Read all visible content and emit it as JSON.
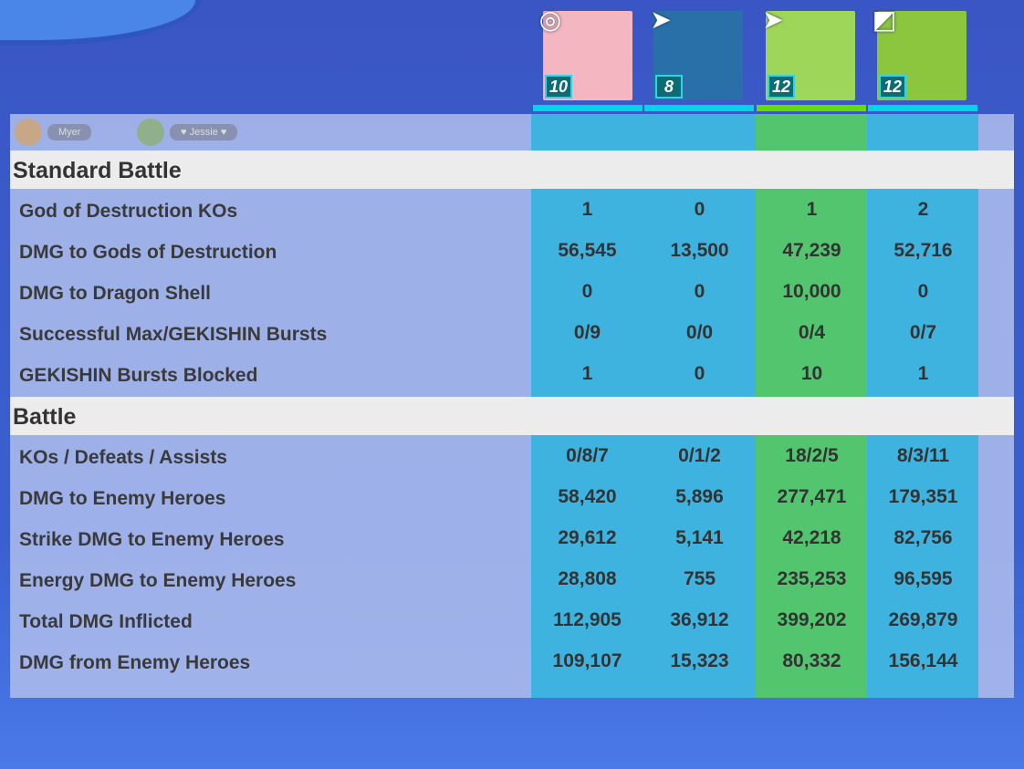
{
  "players": [
    {
      "level": "10",
      "role_icon": "ring-icon",
      "bar_color": "#00d4e6",
      "color": "#f4b6c0"
    },
    {
      "level": "8",
      "role_icon": "arrow-icon",
      "bar_color": "#00d4e6",
      "color": "#2a70a8"
    },
    {
      "level": "12",
      "role_icon": "arrow-icon",
      "bar_color": "#66dd00",
      "color": "#9ed65a"
    },
    {
      "level": "12",
      "role_icon": "corner-icon",
      "bar_color": "#00d4e6",
      "color": "#8cc63f"
    }
  ],
  "sections": [
    {
      "title": "Standard Battle",
      "rows": [
        {
          "label": "God of Destruction KOs",
          "values": [
            "1",
            "0",
            "1",
            "2"
          ]
        },
        {
          "label": "DMG to Gods of Destruction",
          "values": [
            "56,545",
            "13,500",
            "47,239",
            "52,716"
          ]
        },
        {
          "label": "DMG to Dragon Shell",
          "values": [
            "0",
            "0",
            "10,000",
            "0"
          ]
        },
        {
          "label": "Successful Max/GEKISHIN Bursts",
          "values": [
            "0/9",
            "0/0",
            "0/4",
            "0/7"
          ]
        },
        {
          "label": "GEKISHIN Bursts Blocked",
          "values": [
            "1",
            "0",
            "10",
            "1"
          ]
        }
      ]
    },
    {
      "title": "Battle",
      "rows": [
        {
          "label": "KOs / Defeats / Assists",
          "values": [
            "0/8/7",
            "0/1/2",
            "18/2/5",
            "8/3/11"
          ]
        },
        {
          "label": "DMG to Enemy Heroes",
          "values": [
            "58,420",
            "5,896",
            "277,471",
            "179,351"
          ]
        },
        {
          "label": "Strike DMG to Enemy Heroes",
          "values": [
            "29,612",
            "5,141",
            "42,218",
            "82,756"
          ]
        },
        {
          "label": "Energy DMG to Enemy Heroes",
          "values": [
            "28,808",
            "755",
            "235,253",
            "96,595"
          ]
        },
        {
          "label": "Total DMG Inflicted",
          "values": [
            "112,905",
            "36,912",
            "399,202",
            "269,879"
          ]
        },
        {
          "label": "DMG from Enemy Heroes",
          "values": [
            "109,107",
            "15,323",
            "80,332",
            "156,144"
          ]
        }
      ]
    }
  ],
  "chat": [
    {
      "name": "Myer"
    },
    {
      "name": "♥ Jessie ♥"
    }
  ]
}
